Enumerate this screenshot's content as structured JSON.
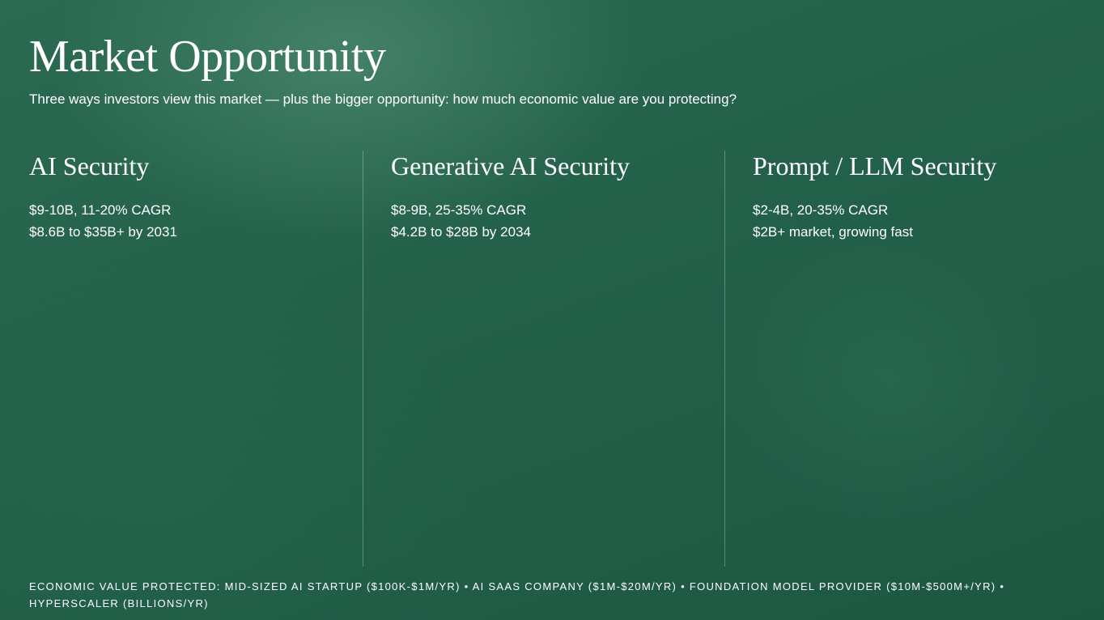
{
  "slide": {
    "title": "Market Opportunity",
    "subtitle": "Three ways investors view this market — plus the bigger opportunity: how much economic value are you protecting?"
  },
  "columns": [
    {
      "title": "AI Security",
      "stat1": "$9-10B, 11-20% CAGR",
      "stat2": "$8.6B to $35B+ by 2031"
    },
    {
      "title": "Generative AI Security",
      "stat1": "$8-9B, 25-35% CAGR",
      "stat2": "$4.2B to $28B by 2034"
    },
    {
      "title": "Prompt / LLM Security",
      "stat1": "$2-4B, 20-35% CAGR",
      "stat2": "$2B+ market, growing fast"
    }
  ],
  "footer": {
    "text": "ECONOMIC VALUE PROTECTED: MID-SIZED AI STARTUP ($100K-$1M/YR) • AI SAAS COMPANY ($1M-$20M/YR) • FOUNDATION MODEL PROVIDER ($10M-$500M+/YR) • HYPERSCALER (BILLIONS/YR)"
  },
  "theme": {
    "background": "#24614a",
    "text": "#ffffff",
    "divider": "rgba(255,255,255,0.28)"
  }
}
